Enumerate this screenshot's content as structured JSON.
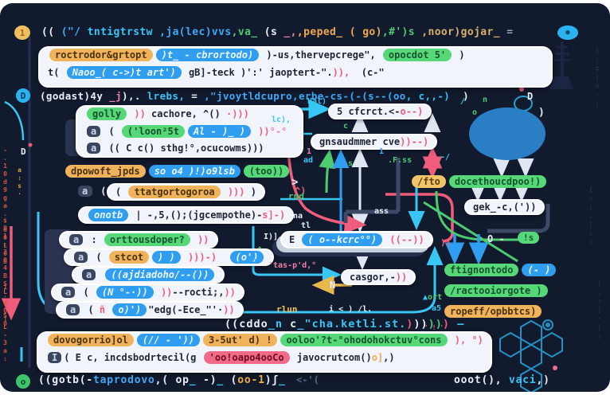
{
  "top": {
    "badge": "1",
    "badge_right": "●",
    "code": [
      {
        "t": "(( ",
        "c": "white"
      },
      {
        "t": "(\"/ ",
        "c": "blue"
      },
      {
        "t": "tntigtrstw ",
        "c": "cyan"
      },
      {
        "t": ",ja(lec)vvs",
        "c": "blue"
      },
      {
        "t": ",va_ ",
        "c": "green"
      },
      {
        "t": "(s ",
        "c": "white"
      },
      {
        "t": "_,",
        "c": "pink"
      },
      {
        "t": ",peped_ ",
        "c": "orange"
      },
      {
        "t": "( go)",
        "c": "orange"
      },
      {
        "t": ",#')s ",
        "c": "green"
      },
      {
        "t": ",noor)gojar_ ",
        "c": "tan"
      },
      {
        "t": "=",
        "c": "gray"
      }
    ]
  },
  "header_box": {
    "line1": [
      {
        "t": "roctrodor&grtopt",
        "p": "orange"
      },
      {
        "t": ")t_ - cbrortodo)",
        "p": "blue"
      },
      {
        "t": " )-us,thervepcrege\", ",
        "c": "dark"
      },
      {
        "t": "opocdot 5'",
        "p": "green"
      },
      {
        "t": " )",
        "c": "dark"
      }
    ],
    "line2": [
      {
        "t": "t( ",
        "c": "dark"
      },
      {
        "t": "Naoo_( c->)t art')",
        "p": "blue"
      },
      {
        "t": " gB]-teck )':' jaoptert-\".",
        "c": "dark"
      },
      {
        "t": ")),",
        "c": "red"
      },
      {
        "t": "  (c-\"",
        "c": "dark"
      }
    ]
  },
  "godast": {
    "badge": "D",
    "code": [
      {
        "t": "(godast)4y ",
        "c": "white"
      },
      {
        "t": "_j",
        "c": "pink"
      },
      {
        "t": "),. ",
        "c": "white"
      },
      {
        "t": "lrebs, ",
        "c": "cyan"
      },
      {
        "t": "= ",
        "c": "white"
      },
      {
        "t": ",\"jvoytldcupro,",
        "c": "blue"
      },
      {
        "t": "erbe-cs-(-(s--(oo",
        "c": "blue"
      },
      {
        "t": ", c,,-) ",
        "c": "cyan"
      },
      {
        "t": " )",
        "c": "white"
      }
    ]
  },
  "cachore_box": {
    "rows": [
      [
        {
          "t": "golly",
          "p": "green"
        },
        {
          "t": " ))",
          "c": "red"
        },
        {
          "t": " cachore, ^() ",
          "c": "dark"
        },
        {
          "t": "·)))",
          "c": "red"
        }
      ],
      [
        {
          "t": "a",
          "p": "chip"
        },
        {
          "t": " ( ",
          "c": "dark"
        },
        {
          "t": "('loon²5t",
          "p": "green"
        },
        {
          "t": "Al - )_ )",
          "p": "blue"
        },
        {
          "t": " ))",
          "c": "red"
        },
        {
          "t": "°-°",
          "c": "pink"
        }
      ],
      [
        {
          "t": "a",
          "p": "chip"
        },
        {
          "t": " (( C c() sthg!°,ocucowms)))",
          "c": "dark"
        }
      ]
    ]
  },
  "dpowoft": {
    "row": [
      {
        "t": "dpowoft_jpds",
        "p": "orange"
      },
      {
        "t": "so o4 )!)o9lsb",
        "p": "blue"
      },
      {
        "t": "(too))",
        "p": "green"
      }
    ]
  },
  "ftot": {
    "prefix": [
      {
        "t": "a",
        "p": "chip"
      },
      {
        "t": " ((",
        "c": "white"
      }
    ],
    "card": [
      {
        "t": "( ",
        "c": "dark"
      },
      {
        "t": "ttatgortogoroa",
        "p": "orange"
      },
      {
        "t": " )))",
        "c": "red"
      },
      {
        "t": " )",
        "c": "dark"
      }
    ],
    "suffix": "^)"
  },
  "onotb": {
    "row": [
      {
        "t": "onotb",
        "p": "blue"
      },
      {
        "t": " | -,5,();(jgcempothe)-",
        "c": "dark"
      },
      {
        "t": "s]-)",
        "c": "red"
      }
    ]
  },
  "stack1": {
    "rows": [
      [
        {
          "t": "a",
          "p": "chip"
        },
        {
          "t": " : ",
          "c": "dark"
        },
        {
          "t": "orttousdoper?",
          "p": "green"
        },
        {
          "t": " ))",
          "c": "red"
        }
      ],
      [
        {
          "t": "a",
          "p": "chip"
        },
        {
          "t": " ( ",
          "c": "dark"
        },
        {
          "t": "stcot",
          "p": "orange"
        },
        {
          "t": ") )",
          "p": "blue"
        },
        {
          "t": " )))-)",
          "c": "red"
        },
        {
          "t": "  ",
          "c": "dark"
        },
        {
          "t": "(o')",
          "p": "blue"
        }
      ],
      [
        {
          "t": "a",
          "p": "chip"
        },
        {
          "t": " ",
          "c": "dark"
        },
        {
          "t": "((ajdiadoho/--())",
          "p": "blue"
        }
      ]
    ]
  },
  "stack2": {
    "rows": [
      [
        {
          "t": "a",
          "p": "chip"
        },
        {
          "t": " ( ",
          "c": "dark"
        },
        {
          "t": "(N °-·))",
          "p": "blue"
        },
        {
          "t": " ))",
          "c": "red"
        },
        {
          "t": "--rocti;,",
          "c": "dark"
        },
        {
          "t": "))",
          "c": "red"
        }
      ],
      [
        {
          "t": "a",
          "p": "chip"
        },
        {
          "t": " ( ",
          "c": "dark"
        },
        {
          "t": "ñ",
          "c": "red"
        },
        {
          "t": " ",
          "c": "dark"
        },
        {
          "t": "o)')",
          "p": "blue"
        },
        {
          "t": "\"edg(-Ece_\"'·",
          "c": "dark"
        },
        {
          "t": "))",
          "c": "red"
        }
      ]
    ]
  },
  "cfrct": [
    {
      "t": "5 cfcrct.<-",
      "c": "dark"
    },
    {
      "t": "o--)",
      "c": "red"
    }
  ],
  "gnsaudmmer": [
    {
      "t": "gnsaudmmer cve",
      "c": "dark"
    },
    {
      "t": "))--)",
      "c": "red"
    }
  ],
  "ecard": [
    {
      "t": "E ",
      "c": "dark"
    },
    {
      "t": "( o--kcrc°°)",
      "p": "blue"
    },
    {
      "t": " ",
      "c": "dark"
    },
    {
      "t": "((--))",
      "c": "red"
    }
  ],
  "casgor": [
    {
      "t": "casgor,-",
      "c": "dark"
    },
    {
      "t": "))",
      "c": "red"
    }
  ],
  "fto": [
    {
      "t": "/fto",
      "p": "yellow"
    },
    {
      "t": "docethoucdpoo!)",
      "p": "green"
    }
  ],
  "gek": [
    {
      "t": "gek_-c,('))",
      "c": "dark"
    }
  ],
  "odash": {
    "label": "O -",
    "pill": "!s"
  },
  "right_pills": {
    "p1": [
      {
        "t": "ftignontodo",
        "p": "green"
      },
      {
        "t": "(- )",
        "p": "blue"
      }
    ],
    "p2": [
      {
        "t": "/ractooiorgote )",
        "p": "green"
      }
    ],
    "p3": [
      {
        "t": "ropeff/opbbtcs)",
        "p": "orange"
      }
    ]
  },
  "cddo": [
    {
      "t": "((cddo",
      "c": "white"
    },
    {
      "t": "_n",
      "c": "cyan"
    },
    {
      "t": " c",
      "c": "white"
    },
    {
      "t": "_",
      "c": "cyan"
    },
    {
      "t": "\"cha.ketli.st.",
      "c": "cyan"
    },
    {
      "t": ")",
      "c": "red"
    },
    {
      "t": "))",
      "c": "white"
    },
    {
      "t": "))",
      "c": "green"
    },
    {
      "t": ")",
      "c": "red"
    },
    {
      "t": " —",
      "c": "cyan"
    }
  ],
  "bottom_box": {
    "line1": [
      {
        "t": "dovogorrio]ol",
        "p": "orange"
      },
      {
        "t": "(// - '))",
        "p": "blue"
      },
      {
        "t": "3-5ut' d) !",
        "p": "orange"
      },
      {
        "t": "ooloo'?t-°ohodohokctuv°cons",
        "p": "green"
      },
      {
        "t": " ),",
        "c": "red"
      },
      {
        "t": " °)",
        "c": "red"
      }
    ],
    "line2": [
      {
        "t": "I",
        "p": "chip"
      },
      {
        "t": "( E c, incdsbodrtecil(g ",
        "c": "dark"
      },
      {
        "t": "'oo!oapo4ooCo",
        "p": "red"
      },
      {
        "t": " javocrutcom()",
        "c": "dark"
      },
      {
        "t": "o]",
        "c": "orange"
      },
      {
        "t": ",)",
        "c": "dark"
      }
    ]
  },
  "bottom": {
    "badge": "o",
    "code": [
      {
        "t": "((gotb(-",
        "c": "white"
      },
      {
        "t": "taprodovo",
        "c": "blue"
      },
      {
        "t": ",( op",
        "c": "white"
      },
      {
        "t": "_",
        "c": "cyan"
      },
      {
        "t": " -)",
        "c": "white"
      },
      {
        "t": "_",
        "c": "cyan"
      },
      {
        "t": " (",
        "c": "white"
      },
      {
        "t": "oo-1",
        "c": "orange"
      },
      {
        "t": ")ʃ",
        "c": "white"
      },
      {
        "t": "_",
        "c": "cyan"
      }
    ],
    "faint": "<-'(",
    "tail": [
      {
        "t": "ooot(), ",
        "c": "white"
      },
      {
        "t": "vaci",
        "c": "cyan"
      },
      {
        "t": ",)",
        "c": "white"
      }
    ]
  },
  "labels": {
    "hal": "Hal)",
    "lc": "lc),",
    "one_pink": "1",
    "ad": "ad",
    "s_green": "s",
    "one_blue": "1",
    "fss": ".F.ss",
    "dashslash": "-/",
    "c_green": "c",
    "slash_cyan": "/",
    "n_green": "n",
    "o_green": "o",
    "d_label": "D",
    "d_label2": "D",
    "paren": ")",
    "rud": "rud",
    "na": "na",
    "tl": "tl",
    "ass": "ass",
    "gt": ">",
    "tas": "'tas-p'd,°",
    "redpp": "))",
    "ibrack": "I)]",
    "caret": "^",
    "o_blue": "o",
    "n_arrow": "N",
    "rlun": "rlun",
    "misc1": "i < ) /l.",
    "a5": "a5",
    "marks_red": "' ! '",
    "ort": [
      {
        "t": "▲",
        "c": "cyan"
      },
      {
        "t": "ort",
        "c": "green"
      }
    ]
  },
  "strips": {
    "left1": "-.10d9ga.-d0L0B",
    "left2": "s01:304BSL.-50",
    "left3": "1.d0]L-3a:",
    "left4": "a:s·",
    "wm1": "|:‡|≡·|",
    "wm2": "{:;.|:≀",
    "wm3": "|.:|·|:"
  },
  "colors": {
    "background": "#121a2e",
    "card": "#f1f5fb",
    "accent_cyan": "#38c6f4",
    "accent_blue": "#2f9df0",
    "accent_green": "#57d878",
    "accent_orange": "#f0b35c",
    "accent_red": "#f05c7c",
    "accent_yellow": "#e8b84b"
  }
}
